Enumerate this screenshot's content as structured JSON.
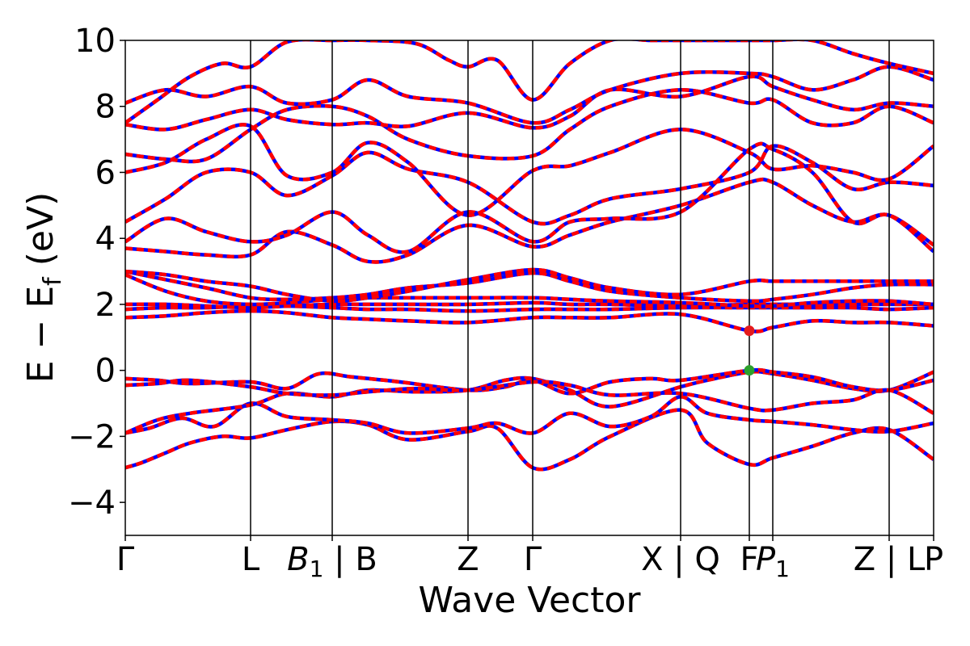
{
  "chart_data": {
    "type": "line",
    "xlabel": "Wave Vector",
    "ylabel": "E − E_f (eV)",
    "ylabel_parts": {
      "main": "E  −  E",
      "sub": "f",
      "unit": " (eV)"
    },
    "ylim": [
      -5,
      10
    ],
    "yticks": [
      -4,
      -2,
      0,
      2,
      4,
      6,
      8,
      10
    ],
    "ytick_labels": [
      "−4",
      "−2",
      "0",
      "2",
      "4",
      "6",
      "8",
      "10"
    ],
    "xlim": [
      0,
      1
    ],
    "kpoints": [
      {
        "x": 0.0,
        "label": "Γ",
        "italic_sub": false
      },
      {
        "x": 0.155,
        "label": "L",
        "italic_sub": false
      },
      {
        "x": 0.256,
        "label": "B",
        "sub": "1",
        "suffix": " | B",
        "italic_sub": true
      },
      {
        "x": 0.424,
        "label": "Z",
        "italic_sub": false
      },
      {
        "x": 0.504,
        "label": "Γ",
        "italic_sub": false
      },
      {
        "x": 0.687,
        "label": "X | Q",
        "italic_sub": false
      },
      {
        "x": 0.772,
        "label": "F",
        "italic_sub": false
      },
      {
        "x": 0.801,
        "label": "P",
        "sub": "1",
        "italic_sub": true
      },
      {
        "x": 0.945,
        "label": "Z | L",
        "italic_sub": false
      },
      {
        "x": 1.0,
        "label": "P",
        "italic_sub": false
      }
    ],
    "series_style": {
      "dft_color": "#0000ff",
      "wannier_color": "#ff0000"
    },
    "series": [
      {
        "x": [
          0,
          0.02,
          0.05,
          0.08,
          0.12,
          0.155,
          0.2,
          0.256,
          0.3,
          0.35,
          0.424,
          0.46,
          0.504,
          0.55,
          0.6,
          0.687,
          0.72,
          0.772,
          0.801,
          0.85,
          0.9,
          0.945,
          1.0
        ],
        "values": [
          -2.95,
          -2.8,
          -2.5,
          -2.2,
          -2.0,
          -2.05,
          -1.8,
          -1.55,
          -1.65,
          -2.1,
          -1.85,
          -1.75,
          -2.95,
          -2.7,
          -2.0,
          -1.2,
          -2.2,
          -2.85,
          -2.65,
          -2.3,
          -1.9,
          -1.8,
          -2.7
        ]
      },
      {
        "x": [
          0,
          0.03,
          0.07,
          0.11,
          0.155,
          0.2,
          0.256,
          0.3,
          0.35,
          0.424,
          0.46,
          0.504,
          0.55,
          0.6,
          0.65,
          0.687,
          0.72,
          0.772,
          0.801,
          0.85,
          0.9,
          0.945,
          1.0
        ],
        "values": [
          -1.9,
          -1.75,
          -1.45,
          -1.7,
          -1.0,
          -1.4,
          -1.5,
          -1.6,
          -1.9,
          -1.75,
          -1.6,
          -1.9,
          -1.3,
          -1.7,
          -1.4,
          -0.8,
          -1.3,
          -1.5,
          -1.55,
          -1.65,
          -1.8,
          -1.85,
          -1.6
        ]
      },
      {
        "x": [
          0,
          0.04,
          0.08,
          0.155,
          0.2,
          0.256,
          0.3,
          0.36,
          0.424,
          0.47,
          0.504,
          0.55,
          0.6,
          0.687,
          0.72,
          0.772,
          0.801,
          0.85,
          0.9,
          0.945,
          1.0
        ],
        "values": [
          -1.9,
          -1.5,
          -1.3,
          -1.05,
          -0.7,
          -0.8,
          -0.6,
          -0.65,
          -0.6,
          -0.3,
          -0.25,
          -0.6,
          -1.1,
          -0.5,
          -0.3,
          -0.05,
          -0.1,
          -0.3,
          -0.55,
          -0.6,
          -0.05
        ]
      },
      {
        "x": [
          0,
          0.04,
          0.08,
          0.155,
          0.2,
          0.24,
          0.28,
          0.34,
          0.424,
          0.47,
          0.504,
          0.55,
          0.6,
          0.65,
          0.687,
          0.772,
          0.801,
          0.85,
          0.9,
          0.945,
          1.0
        ],
        "values": [
          -0.25,
          -0.3,
          -0.4,
          -0.35,
          -0.55,
          -0.1,
          -0.2,
          -0.35,
          -0.6,
          -0.5,
          -0.3,
          -0.7,
          -0.35,
          -0.25,
          -0.3,
          0.0,
          -0.05,
          -0.2,
          -0.5,
          -0.6,
          -0.3
        ]
      },
      {
        "x": [
          0,
          0.04,
          0.08,
          0.155,
          0.2,
          0.256,
          0.3,
          0.36,
          0.424,
          0.504,
          0.55,
          0.6,
          0.687,
          0.772,
          0.801,
          0.85,
          0.9,
          0.945,
          1.0
        ],
        "values": [
          -0.45,
          -0.4,
          -0.3,
          -0.5,
          -0.7,
          -0.75,
          -0.65,
          -0.55,
          -0.6,
          -0.35,
          -0.45,
          -0.75,
          -0.7,
          -1.15,
          -1.2,
          -1.0,
          -0.9,
          -0.6,
          -1.3
        ]
      },
      {
        "x": [
          0,
          0.05,
          0.1,
          0.155,
          0.2,
          0.256,
          0.3,
          0.35,
          0.424,
          0.504,
          0.55,
          0.6,
          0.687,
          0.772,
          0.801,
          0.85,
          0.9,
          0.945,
          1.0
        ],
        "values": [
          1.6,
          1.65,
          1.75,
          1.8,
          1.75,
          1.6,
          1.55,
          1.5,
          1.45,
          1.6,
          1.6,
          1.6,
          1.7,
          1.2,
          1.3,
          1.5,
          1.45,
          1.45,
          1.35
        ]
      },
      {
        "x": [
          0,
          0.05,
          0.1,
          0.155,
          0.2,
          0.256,
          0.3,
          0.35,
          0.424,
          0.504,
          0.55,
          0.6,
          0.687,
          0.772,
          0.801,
          0.85,
          0.9,
          0.945,
          1.0
        ],
        "values": [
          1.85,
          1.9,
          1.9,
          1.95,
          1.95,
          1.9,
          1.85,
          1.85,
          1.8,
          1.85,
          1.85,
          1.85,
          1.9,
          1.9,
          1.9,
          1.9,
          1.9,
          1.85,
          1.9
        ]
      },
      {
        "x": [
          0,
          0.05,
          0.1,
          0.155,
          0.2,
          0.256,
          0.3,
          0.35,
          0.424,
          0.504,
          0.55,
          0.6,
          0.687,
          0.772,
          0.801,
          0.85,
          0.9,
          0.945,
          1.0
        ],
        "values": [
          2.0,
          2.0,
          1.95,
          1.9,
          1.95,
          2.0,
          2.0,
          2.0,
          2.0,
          2.05,
          2.0,
          2.0,
          1.95,
          2.0,
          2.0,
          2.0,
          2.0,
          2.0,
          2.0
        ]
      },
      {
        "x": [
          0,
          0.05,
          0.1,
          0.155,
          0.2,
          0.256,
          0.3,
          0.35,
          0.424,
          0.504,
          0.55,
          0.6,
          0.687,
          0.772,
          0.801,
          0.85,
          0.9,
          0.945,
          1.0
        ],
        "values": [
          2.9,
          2.4,
          2.1,
          2.0,
          2.05,
          2.15,
          2.2,
          2.2,
          2.2,
          2.2,
          2.15,
          2.1,
          2.05,
          1.95,
          1.95,
          2.05,
          2.1,
          2.1,
          2.0
        ]
      },
      {
        "x": [
          0,
          0.05,
          0.1,
          0.155,
          0.2,
          0.256,
          0.3,
          0.35,
          0.424,
          0.504,
          0.55,
          0.6,
          0.687,
          0.772,
          0.801,
          0.85,
          0.9,
          0.945,
          1.0
        ],
        "values": [
          3.0,
          2.75,
          2.5,
          2.2,
          2.15,
          2.2,
          2.3,
          2.5,
          2.65,
          2.95,
          2.7,
          2.4,
          2.2,
          2.1,
          2.15,
          2.3,
          2.5,
          2.6,
          2.6
        ]
      },
      {
        "x": [
          0,
          0.05,
          0.1,
          0.155,
          0.2,
          0.256,
          0.3,
          0.35,
          0.424,
          0.504,
          0.55,
          0.6,
          0.687,
          0.772,
          0.801,
          0.85,
          0.9,
          0.945,
          1.0
        ],
        "values": [
          3.0,
          2.9,
          2.7,
          2.55,
          2.3,
          2.1,
          2.2,
          2.4,
          2.75,
          3.05,
          2.8,
          2.5,
          2.3,
          2.7,
          2.7,
          2.7,
          2.7,
          2.7,
          2.7
        ]
      },
      {
        "x": [
          0,
          0.05,
          0.1,
          0.155,
          0.2,
          0.256,
          0.3,
          0.35,
          0.424,
          0.504,
          0.55,
          0.6,
          0.687,
          0.772,
          0.801,
          0.85,
          0.9,
          0.945,
          1.0
        ],
        "values": [
          3.7,
          3.6,
          3.5,
          3.5,
          4.2,
          3.8,
          3.3,
          3.5,
          4.4,
          3.75,
          4.1,
          4.5,
          5.0,
          5.7,
          5.7,
          5.0,
          4.5,
          4.7,
          3.8
        ]
      },
      {
        "x": [
          0,
          0.05,
          0.1,
          0.155,
          0.2,
          0.256,
          0.3,
          0.35,
          0.424,
          0.504,
          0.55,
          0.6,
          0.687,
          0.772,
          0.801,
          0.85,
          0.9,
          0.945,
          1.0
        ],
        "values": [
          3.9,
          4.6,
          4.2,
          3.9,
          4.1,
          4.8,
          4.1,
          3.6,
          4.8,
          3.9,
          4.5,
          4.6,
          4.8,
          6.7,
          6.7,
          6.0,
          4.5,
          4.7,
          3.6
        ]
      },
      {
        "x": [
          0,
          0.05,
          0.1,
          0.155,
          0.2,
          0.256,
          0.3,
          0.35,
          0.424,
          0.504,
          0.55,
          0.6,
          0.687,
          0.772,
          0.801,
          0.85,
          0.9,
          0.945,
          1.0
        ],
        "values": [
          4.5,
          5.2,
          6.0,
          6.0,
          5.3,
          5.9,
          6.6,
          6.1,
          5.7,
          4.5,
          4.7,
          5.2,
          5.5,
          6.0,
          6.8,
          6.3,
          5.5,
          5.7,
          5.6
        ]
      },
      {
        "x": [
          0,
          0.05,
          0.1,
          0.155,
          0.2,
          0.256,
          0.3,
          0.35,
          0.424,
          0.504,
          0.55,
          0.6,
          0.687,
          0.772,
          0.801,
          0.85,
          0.9,
          0.945,
          1.0
        ],
        "values": [
          6.0,
          6.3,
          7.0,
          7.4,
          5.9,
          6.0,
          6.9,
          6.3,
          4.7,
          6.05,
          6.2,
          6.6,
          7.3,
          6.6,
          6.1,
          6.2,
          6.0,
          5.8,
          6.8
        ]
      },
      {
        "x": [
          0,
          0.05,
          0.1,
          0.155,
          0.2,
          0.256,
          0.3,
          0.35,
          0.424,
          0.504,
          0.55,
          0.6,
          0.687,
          0.772,
          0.801,
          0.85,
          0.9,
          0.945,
          1.0
        ],
        "values": [
          6.55,
          6.4,
          6.4,
          7.3,
          7.9,
          8.0,
          7.7,
          7.0,
          6.5,
          6.5,
          7.3,
          8.0,
          8.5,
          8.1,
          8.2,
          7.5,
          7.5,
          8.0,
          7.5
        ]
      },
      {
        "x": [
          0,
          0.05,
          0.1,
          0.155,
          0.2,
          0.256,
          0.3,
          0.35,
          0.424,
          0.504,
          0.55,
          0.6,
          0.687,
          0.772,
          0.801,
          0.85,
          0.9,
          0.945,
          1.0
        ],
        "values": [
          7.45,
          7.3,
          7.6,
          7.9,
          7.6,
          7.45,
          7.5,
          7.4,
          7.8,
          7.35,
          7.7,
          8.5,
          8.3,
          8.9,
          8.6,
          8.2,
          7.9,
          8.1,
          8.0
        ]
      },
      {
        "x": [
          0,
          0.05,
          0.1,
          0.155,
          0.2,
          0.256,
          0.3,
          0.35,
          0.424,
          0.504,
          0.55,
          0.6,
          0.687,
          0.772,
          0.801,
          0.85,
          0.9,
          0.945,
          1.0
        ],
        "values": [
          8.1,
          8.5,
          8.3,
          8.6,
          8.1,
          8.2,
          8.8,
          8.3,
          8.1,
          7.5,
          7.9,
          8.5,
          9.0,
          9.0,
          8.9,
          8.5,
          8.8,
          9.2,
          8.8
        ]
      },
      {
        "x": [
          0,
          0.04,
          0.08,
          0.12,
          0.155,
          0.2,
          0.256,
          0.3,
          0.36,
          0.4,
          0.424,
          0.46,
          0.504,
          0.55,
          0.6,
          0.65,
          0.687,
          0.72,
          0.772,
          0.801,
          0.85,
          0.9,
          0.945,
          1.0
        ],
        "values": [
          7.5,
          8.2,
          8.9,
          9.3,
          9.2,
          9.95,
          10.0,
          10.0,
          9.9,
          9.4,
          9.2,
          9.4,
          8.2,
          9.3,
          10.0,
          10.0,
          10.0,
          10.0,
          10.0,
          10.0,
          10.0,
          9.6,
          9.3,
          9.0
        ]
      }
    ],
    "markers": [
      {
        "x": 0.772,
        "y": 1.2,
        "color": "#e41a1c"
      },
      {
        "x": 0.772,
        "y": 0.0,
        "color": "#2ca02c"
      }
    ],
    "grid": false,
    "legend": "none"
  }
}
